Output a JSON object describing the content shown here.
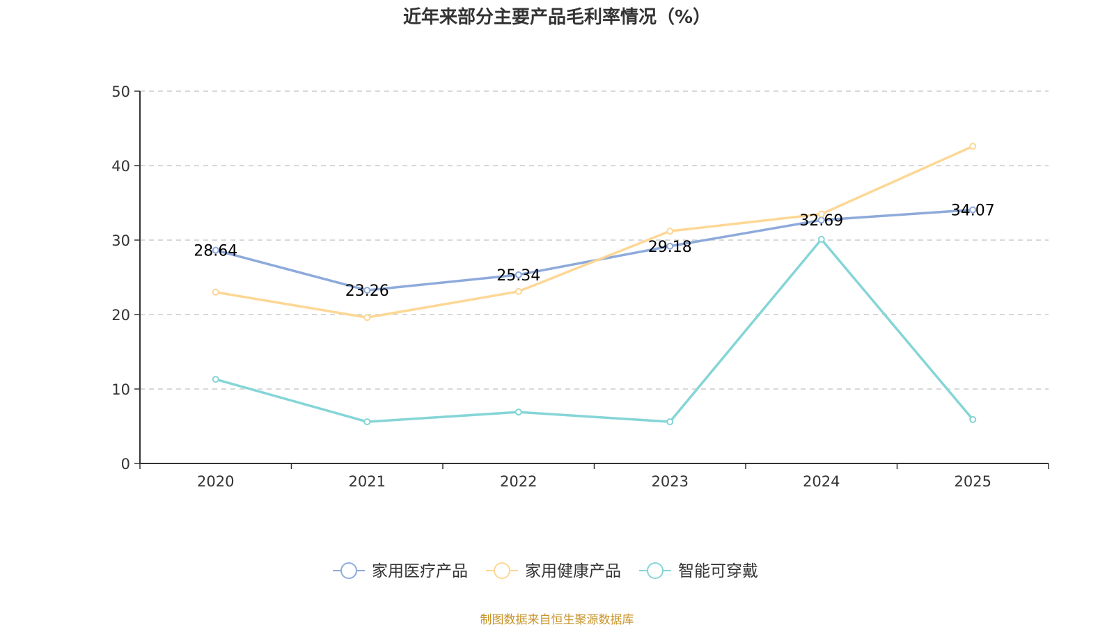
{
  "title": "近年来部分主要产品毛利率情况（%）",
  "source": "制图数据来自恒生聚源数据库",
  "chart_data": {
    "type": "line",
    "title": "近年来部分主要产品毛利率情况（%）",
    "xlabel": "",
    "ylabel": "",
    "categories": [
      "2020",
      "2021",
      "2022",
      "2023",
      "2024",
      "2025"
    ],
    "ylim": [
      0,
      50
    ],
    "yticks": [
      0,
      10,
      20,
      30,
      40,
      50
    ],
    "grid": true,
    "legend_position": "bottom",
    "series": [
      {
        "name": "家用医疗产品",
        "color": "#8eaadb",
        "values": [
          28.64,
          23.26,
          25.34,
          29.18,
          32.69,
          34.07
        ],
        "show_labels": true
      },
      {
        "name": "家用健康产品",
        "color": "#fdd795",
        "values": [
          23.0,
          19.6,
          23.1,
          31.2,
          33.5,
          42.6
        ],
        "show_labels": false
      },
      {
        "name": "智能可穿戴",
        "color": "#85d5d7",
        "values": [
          11.3,
          5.6,
          6.9,
          5.6,
          30.1,
          5.9
        ],
        "show_labels": false
      }
    ]
  }
}
